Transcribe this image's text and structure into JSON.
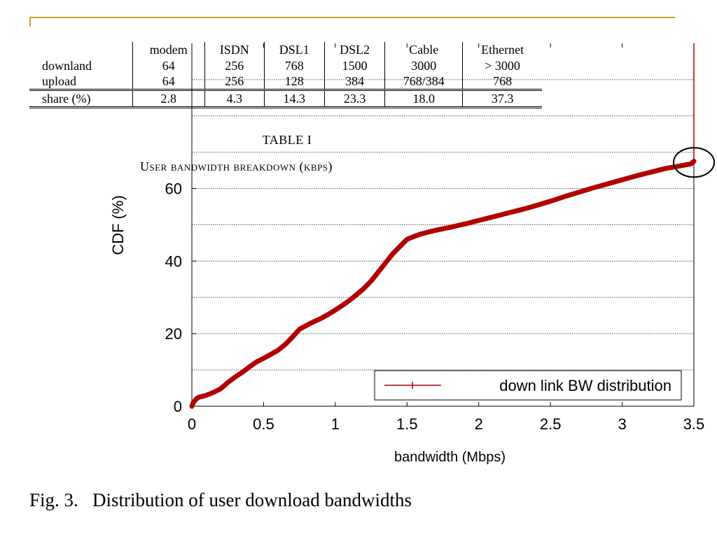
{
  "table": {
    "headers": [
      "",
      "modem",
      "ISDN",
      "DSL1",
      "DSL2",
      "Cable",
      "Ethernet"
    ],
    "rows": [
      {
        "label": "downland",
        "cells": [
          "64",
          "256",
          "768",
          "1500",
          "3000",
          "> 3000"
        ]
      },
      {
        "label": "upload",
        "cells": [
          "64",
          "256",
          "128",
          "384",
          "768/384",
          "768"
        ]
      }
    ],
    "share": {
      "label": "share (%)",
      "cells": [
        "2.8",
        "4.3",
        "14.3",
        "23.3",
        "18.0",
        "37.3"
      ]
    },
    "label": "TABLE I",
    "caption": "User bandwidth breakdown (kbps)"
  },
  "figure_caption": "Fig. 3.   Distribution of user download bandwidths",
  "colors": {
    "series": "#b00000",
    "grid": "#555555",
    "frame_accent": "#c9a227"
  },
  "chart_data": {
    "type": "line",
    "xlabel": "bandwidth (Mbps)",
    "ylabel": "CDF (%)",
    "xlim": [
      0,
      3.5
    ],
    "ylim": [
      0,
      100
    ],
    "xticks": [
      0,
      0.5,
      1,
      1.5,
      2,
      2.5,
      3,
      3.5
    ],
    "xtick_labels": [
      "0",
      "0.5",
      "1",
      "1.5",
      "2",
      "2.5",
      "3",
      "3.5"
    ],
    "yticks_labeled": [
      0,
      20,
      40,
      60
    ],
    "ytick_labels": [
      "0",
      "20",
      "40",
      "60"
    ],
    "grid_y": [
      10,
      20,
      30,
      40,
      50,
      60,
      70,
      80,
      90
    ],
    "grid": true,
    "legend_position": "bottom-right",
    "annotation": "circle highlighting the jump at 3.5 Mbps",
    "series": [
      {
        "name": "down link BW distribution",
        "x": [
          0,
          0.01,
          0.03,
          0.05,
          0.1,
          0.15,
          0.2,
          0.25,
          0.3,
          0.35,
          0.4,
          0.45,
          0.5,
          0.55,
          0.6,
          0.65,
          0.7,
          0.75,
          0.8,
          0.85,
          0.9,
          0.95,
          1.0,
          1.05,
          1.1,
          1.15,
          1.2,
          1.25,
          1.3,
          1.35,
          1.4,
          1.45,
          1.5,
          1.55,
          1.6,
          1.7,
          1.8,
          1.9,
          2.0,
          2.1,
          2.2,
          2.3,
          2.4,
          2.5,
          2.6,
          2.7,
          2.8,
          2.9,
          3.0,
          3.1,
          3.2,
          3.3,
          3.4,
          3.48,
          3.5,
          3.5
        ],
        "y": [
          0,
          1.0,
          2.0,
          2.5,
          3.0,
          3.8,
          4.8,
          6.5,
          8.0,
          9.3,
          10.8,
          12.2,
          13.2,
          14.3,
          15.4,
          17.0,
          19.0,
          21.2,
          22.3,
          23.3,
          24.2,
          25.3,
          26.5,
          27.8,
          29.2,
          30.8,
          32.5,
          34.5,
          37.0,
          39.5,
          42.0,
          44.0,
          46.0,
          46.8,
          47.5,
          48.5,
          49.3,
          50.2,
          51.2,
          52.2,
          53.2,
          54.2,
          55.3,
          56.5,
          57.8,
          59.0,
          60.2,
          61.3,
          62.4,
          63.5,
          64.5,
          65.5,
          66.2,
          66.8,
          67.5,
          100
        ]
      }
    ]
  }
}
